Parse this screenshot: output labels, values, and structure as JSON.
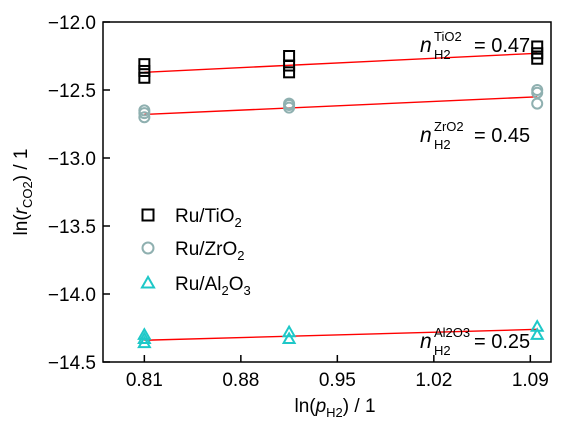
{
  "chart_data": {
    "type": "scatter",
    "xlabel": "ln(p_H2) / 1",
    "xlabel_parts": {
      "pre": "ln(",
      "sym": "p",
      "sub": "H2",
      "post": ") / 1"
    },
    "ylabel": "ln(r_CO2) / 1",
    "ylabel_parts": {
      "pre": "ln(",
      "sym": "r",
      "sub": "CO2",
      "post": ") / 1"
    },
    "xlim": [
      0.78,
      1.105
    ],
    "ylim": [
      -14.5,
      -12.0
    ],
    "xticks": [
      0.81,
      0.88,
      0.95,
      1.02,
      1.09
    ],
    "xtick_labels": [
      "0.81",
      "0.88",
      "0.95",
      "1.02",
      "1.09"
    ],
    "yticks": [
      -12.0,
      -12.5,
      -13.0,
      -13.5,
      -14.0,
      -14.5
    ],
    "ytick_labels": [
      "−12.0",
      "−12.5",
      "−13.0",
      "−13.5",
      "−14.0",
      "−14.5"
    ],
    "grid": false,
    "legend_position": "center-left",
    "fit_color": "#ff0000",
    "series": [
      {
        "name": "Ru/TiO2",
        "label_parts": [
          "Ru/TiO",
          "2",
          ""
        ],
        "marker": "square",
        "color": "#000000",
        "points": [
          [
            0.81,
            -12.31
          ],
          [
            0.81,
            -12.36
          ],
          [
            0.81,
            -12.41
          ],
          [
            0.915,
            -12.25
          ],
          [
            0.915,
            -12.32
          ],
          [
            0.915,
            -12.37
          ],
          [
            1.095,
            -12.18
          ],
          [
            1.095,
            -12.23
          ],
          [
            1.095,
            -12.27
          ]
        ],
        "fit": {
          "x": [
            0.81,
            1.095
          ],
          "y": [
            -12.37,
            -12.23
          ]
        },
        "annotation": {
          "n": "n",
          "sup": "TiO2",
          "sub": "H2",
          "value": "= 0.47"
        }
      },
      {
        "name": "Ru/ZrO2",
        "label_parts": [
          "Ru/ZrO",
          "2",
          ""
        ],
        "marker": "circle",
        "color": "#8fb0b0",
        "points": [
          [
            0.81,
            -12.65
          ],
          [
            0.81,
            -12.67
          ],
          [
            0.81,
            -12.7
          ],
          [
            0.915,
            -12.6
          ],
          [
            0.915,
            -12.61
          ],
          [
            0.915,
            -12.63
          ],
          [
            1.095,
            -12.5
          ],
          [
            1.095,
            -12.52
          ],
          [
            1.095,
            -12.6
          ]
        ],
        "fit": {
          "x": [
            0.81,
            1.095
          ],
          "y": [
            -12.68,
            -12.55
          ]
        },
        "annotation": {
          "n": "n",
          "sup": "ZrO2",
          "sub": "H2",
          "value": "= 0.45"
        }
      },
      {
        "name": "Ru/Al2O3",
        "label_parts": [
          "Ru/Al",
          "2",
          "O",
          "3"
        ],
        "marker": "triangle",
        "color": "#1ec8c8",
        "points": [
          [
            0.81,
            -14.3
          ],
          [
            0.81,
            -14.33
          ],
          [
            0.81,
            -14.36
          ],
          [
            0.915,
            -14.28
          ],
          [
            0.915,
            -14.33
          ],
          [
            1.095,
            -14.24
          ],
          [
            1.095,
            -14.3
          ]
        ],
        "fit": {
          "x": [
            0.81,
            1.095
          ],
          "y": [
            -14.34,
            -14.26
          ]
        },
        "annotation": {
          "n": "n",
          "sup": "Al2O3",
          "sub": "H2",
          "value": "= 0.25"
        }
      }
    ]
  }
}
